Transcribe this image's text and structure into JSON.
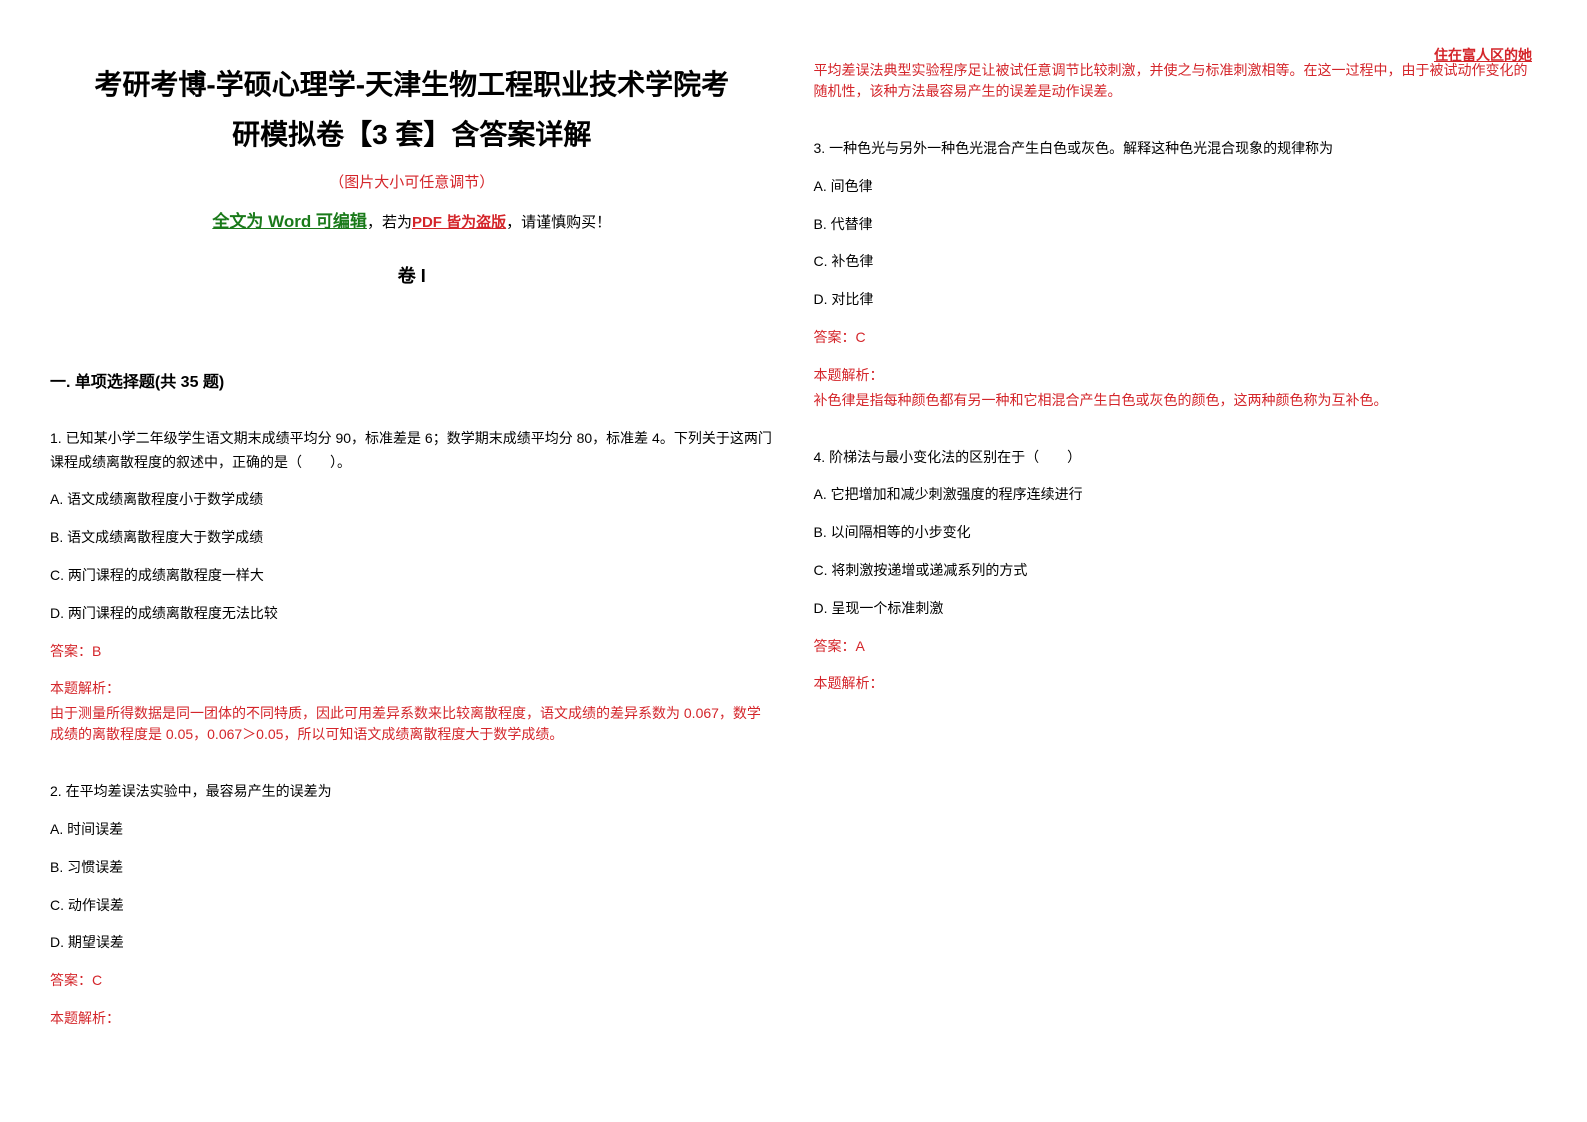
{
  "colors": {
    "black": "#000000",
    "red": "#d4252a",
    "highlight_red": "#d4252a"
  },
  "watermark": {
    "text": "住在富人区的她",
    "color": "#d4252a"
  },
  "header": {
    "title_line1": "考研考博-学硕心理学-天津生物工程职业技术学院考",
    "title_line2": "研模拟卷【3 套】含答案详解",
    "title_color": "#000000",
    "subtitle": "（图片大小可任意调节）",
    "subtitle_color": "#d4252a",
    "edit_prefix": "全文为 Word 可编辑",
    "edit_prefix_color": "#1a7a1a",
    "edit_mid": "，若为",
    "edit_pdf": "PDF 皆为盗版",
    "edit_pdf_color": "#d4252a",
    "edit_suffix": "，请谨慎购买！",
    "volume": "卷 I"
  },
  "section": {
    "title": "一. 单项选择题(共 35 题)"
  },
  "questions": [
    {
      "text": "1. 已知某小学二年级学生语文期末成绩平均分 90，标准差是 6；数学期末成绩平均分 80，标准差 4。下列关于这两门课程成绩离散程度的叙述中，正确的是（　　）。",
      "options": [
        "A. 语文成绩离散程度小于数学成绩",
        "B. 语文成绩离散程度大于数学成绩",
        "C. 两门课程的成绩离散程度一样大",
        "D. 两门课程的成绩离散程度无法比较"
      ],
      "answer": "答案：B",
      "explain_label": "本题解析：",
      "explain": "由于测量所得数据是同一团体的不同特质，因此可用差异系数来比较离散程度，语文成绩的差异系数为 0.067，数学成绩的离散程度是 0.05，0.067＞0.05，所以可知语文成绩离散程度大于数学成绩。"
    },
    {
      "text": "2. 在平均差误法实验中，最容易产生的误差为",
      "options": [
        "A. 时间误差",
        "B. 习惯误差",
        "C. 动作误差",
        "D. 期望误差"
      ],
      "answer": "答案：C",
      "explain_label": "本题解析：",
      "explain": "平均差误法典型实验程序足让被试任意调节比较刺激，并使之与标准刺激相等。在这一过程中，由于被试动作变化的随机性，该种方法最容易产生的误差是动作误差。"
    },
    {
      "text": "3. 一种色光与另外一种色光混合产生白色或灰色。解释这种色光混合现象的规律称为",
      "options": [
        "A. 间色律",
        "B. 代替律",
        "C. 补色律",
        "D. 对比律"
      ],
      "answer": "答案：C",
      "explain_label": "本题解析：",
      "explain": "补色律是指每种颜色都有另一种和它相混合产生白色或灰色的颜色，这两种颜色称为互补色。"
    },
    {
      "text": "4. 阶梯法与最小变化法的区别在于（　　）",
      "options": [
        "A. 它把增加和减少刺激强度的程序连续进行",
        "B. 以间隔相等的小步变化",
        "C. 将刺激按递增或递减系列的方式",
        "D. 呈现一个标准刺激"
      ],
      "answer": "答案：A",
      "explain_label": "本题解析：",
      "explain": ""
    }
  ]
}
